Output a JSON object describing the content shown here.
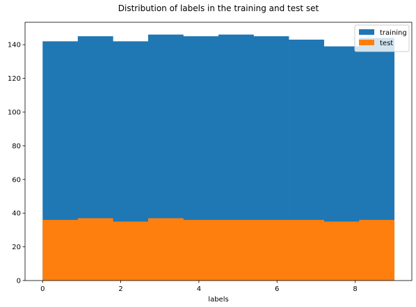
{
  "chart_data": {
    "type": "bar",
    "title": "Distribution of labels in the training and test set",
    "xlabel": "labels",
    "ylabel": "",
    "xlim": [
      -0.45,
      9.45
    ],
    "ylim": [
      0,
      153.3
    ],
    "bin_edges": [
      0,
      0.9,
      1.8,
      2.7,
      3.6,
      4.5,
      5.4,
      6.3,
      7.2,
      8.1,
      9.0
    ],
    "x_ticks": [
      0,
      2,
      4,
      6,
      8
    ],
    "x_tick_labels": [
      "0",
      "2",
      "4",
      "6",
      "8"
    ],
    "y_ticks": [
      0,
      20,
      40,
      60,
      80,
      100,
      120,
      140
    ],
    "y_tick_labels": [
      "0",
      "20",
      "40",
      "60",
      "80",
      "100",
      "120",
      "140"
    ],
    "grid": false,
    "legend_position": "top-right",
    "series": [
      {
        "name": "training",
        "color": "#1f77b4",
        "values": [
          142,
          145,
          142,
          146,
          145,
          146,
          145,
          143,
          139,
          144
        ]
      },
      {
        "name": "test",
        "color": "#ff7f0e",
        "values": [
          36,
          37,
          35,
          37,
          36,
          36,
          36,
          36,
          35,
          36
        ]
      }
    ]
  }
}
